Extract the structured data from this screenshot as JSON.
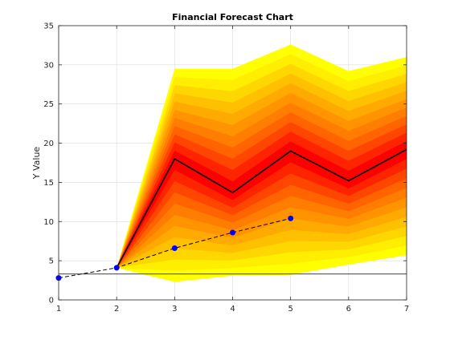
{
  "chart_data": {
    "type": "area",
    "title": "Financial Forecast Chart",
    "xlabel": "",
    "ylabel": "Y Value",
    "xlim": [
      1,
      7
    ],
    "ylim": [
      0,
      35
    ],
    "x_ticks": [
      1,
      2,
      3,
      4,
      5,
      6,
      7
    ],
    "y_ticks": [
      0,
      5,
      10,
      15,
      20,
      25,
      30,
      35
    ],
    "grid": true,
    "fan_x": [
      2,
      3,
      4,
      5,
      6,
      7
    ],
    "fan_median": [
      4.1,
      18.0,
      13.7,
      19.0,
      15.2,
      19.2
    ],
    "fan_upper": [
      4.1,
      29.5,
      29.5,
      32.6,
      29.2,
      31.0
    ],
    "fan_lower": [
      4.1,
      2.3,
      3.1,
      3.2,
      4.5,
      5.7
    ],
    "fan_colors": [
      "#ffff00",
      "#ffee00",
      "#ffd700",
      "#ffc000",
      "#ffaa00",
      "#ff9400",
      "#ff7d00",
      "#ff6400",
      "#ff4600",
      "#ff2400",
      "#ff0000"
    ],
    "baseline_y": 3.3,
    "history": {
      "x": [
        1,
        2,
        3,
        4,
        5
      ],
      "y": [
        2.8,
        4.1,
        6.6,
        8.6,
        10.4
      ]
    },
    "median_line_color": "#000000",
    "history_marker_color": "#0000ff"
  }
}
